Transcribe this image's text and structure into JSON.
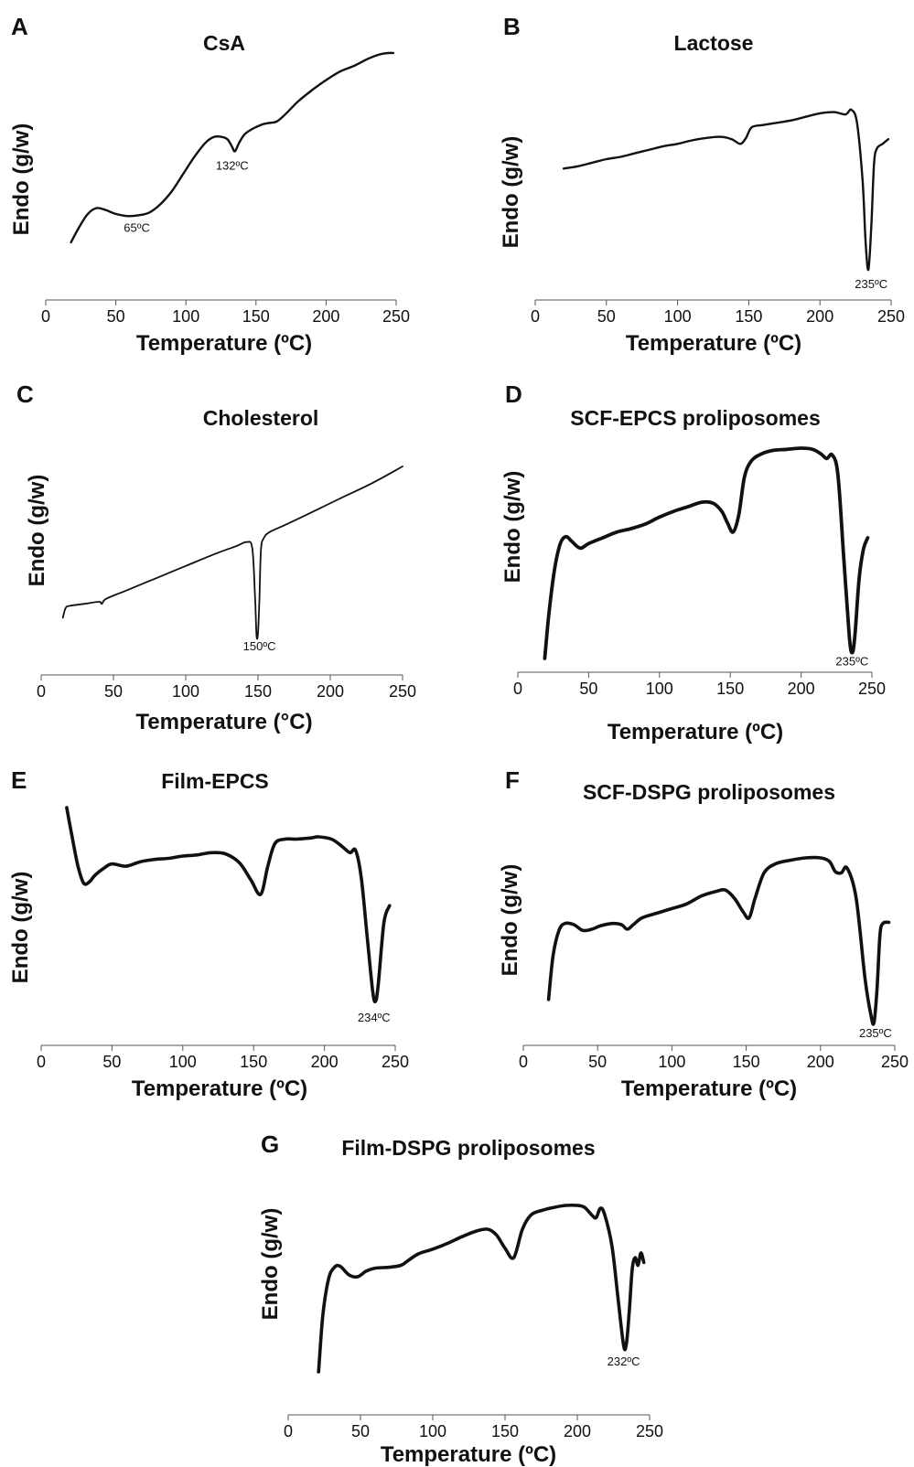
{
  "chart_data": [
    {
      "letter": "A",
      "title": "CsA",
      "type": "line",
      "xlabel": "Temperature (ºC)",
      "ylabel": "Endo (g/w)",
      "xlim": [
        0,
        250
      ],
      "xticks": [
        0,
        50,
        100,
        150,
        200,
        250
      ],
      "grid": false,
      "y_axis_values": "unscaled",
      "x": [
        18,
        24,
        30,
        36,
        42,
        50,
        58,
        66,
        74,
        82,
        90,
        98,
        106,
        114,
        120,
        126,
        130,
        133,
        135,
        138,
        142,
        148,
        155,
        160,
        165,
        172,
        180,
        190,
        200,
        210,
        220,
        230,
        238,
        244,
        248
      ],
      "y": [
        34,
        45,
        54,
        58,
        57,
        54,
        52.5,
        53,
        55,
        61,
        70,
        82,
        94,
        104,
        108,
        108,
        106,
        101,
        98,
        104,
        110,
        114,
        117,
        118,
        119,
        125,
        133,
        141,
        148,
        154,
        158,
        163,
        166,
        167,
        167
      ],
      "annotations": [
        {
          "text": "65ºC",
          "x": 65,
          "y": 53
        },
        {
          "text": "132ºC",
          "x": 133,
          "y": 98
        }
      ]
    },
    {
      "letter": "B",
      "title": "Lactose",
      "type": "line",
      "xlabel": "Temperature (ºC)",
      "ylabel": "Endo (g/w)",
      "xlim": [
        0,
        250
      ],
      "xticks": [
        0,
        50,
        100,
        150,
        200,
        250
      ],
      "grid": false,
      "y_axis_values": "unscaled",
      "x": [
        20,
        30,
        40,
        50,
        60,
        70,
        80,
        90,
        100,
        110,
        120,
        130,
        138,
        144,
        148,
        152,
        160,
        170,
        180,
        190,
        200,
        210,
        218,
        222,
        226,
        230,
        232,
        234,
        236,
        238,
        240,
        244,
        248
      ],
      "y": [
        111,
        113,
        116,
        119,
        121,
        124,
        127,
        130,
        132,
        135,
        137,
        138,
        136,
        132,
        137,
        146,
        148,
        150,
        152,
        155,
        158,
        159,
        157,
        161,
        150,
        100,
        50,
        25,
        60,
        115,
        128,
        132,
        136
      ],
      "annotations": [
        {
          "text": "235ºC",
          "x": 236,
          "y": 25
        }
      ]
    },
    {
      "letter": "C",
      "title": "Cholesterol",
      "type": "line",
      "xlabel": "Temperature (°C)",
      "ylabel": "Endo (g/w)",
      "xlim": [
        0,
        250
      ],
      "xticks": [
        0,
        50,
        100,
        150,
        200,
        250
      ],
      "grid": false,
      "y_axis_values": "unscaled",
      "x": [
        15,
        17,
        20,
        30,
        40,
        42,
        45,
        60,
        80,
        100,
        120,
        135,
        142,
        146,
        148,
        149,
        150,
        151,
        152,
        154,
        158,
        170,
        190,
        210,
        230,
        250
      ],
      "y": [
        60,
        70,
        72,
        74,
        76,
        74,
        79,
        88,
        100,
        112,
        124,
        132,
        136,
        130,
        80,
        42,
        45,
        80,
        128,
        140,
        146,
        154,
        168,
        182,
        196,
        212
      ],
      "annotations": [
        {
          "text": "150ºC",
          "x": 151,
          "y": 42
        }
      ]
    },
    {
      "letter": "D",
      "title": "SCF-EPCS proliposomes",
      "type": "line",
      "xlabel": "Temperature (ºC)",
      "ylabel": "Endo (g/w)",
      "xlim": [
        0,
        250
      ],
      "xticks": [
        0,
        50,
        100,
        150,
        200,
        250
      ],
      "grid": false,
      "y_axis_values": "unscaled",
      "x": [
        19,
        22,
        26,
        30,
        34,
        38,
        44,
        50,
        60,
        70,
        80,
        90,
        100,
        110,
        120,
        130,
        138,
        144,
        148,
        152,
        156,
        160,
        165,
        172,
        180,
        190,
        200,
        208,
        214,
        218,
        222,
        226,
        230,
        234,
        236,
        238,
        241,
        244,
        247
      ],
      "y": [
        40,
        80,
        118,
        140,
        146,
        142,
        136,
        140,
        145,
        150,
        153,
        157,
        163,
        168,
        172,
        176,
        175,
        168,
        158,
        150,
        165,
        198,
        212,
        218,
        221,
        222,
        223,
        222,
        218,
        214,
        217,
        200,
        130,
        60,
        45,
        60,
        110,
        135,
        145
      ],
      "annotations": [
        {
          "text": "235ºC",
          "x": 236,
          "y": 45
        }
      ]
    },
    {
      "letter": "E",
      "title": "Film-EPCS",
      "type": "line",
      "xlabel": "Temperature (ºC)",
      "ylabel": "Endo (g/w)",
      "xlim": [
        0,
        250
      ],
      "xticks": [
        0,
        50,
        100,
        150,
        200,
        250
      ],
      "grid": false,
      "y_axis_values": "unscaled",
      "x": [
        18,
        22,
        26,
        30,
        34,
        38,
        44,
        50,
        60,
        70,
        80,
        90,
        100,
        110,
        120,
        130,
        140,
        148,
        155,
        160,
        165,
        172,
        180,
        190,
        196,
        205,
        212,
        218,
        222,
        226,
        230,
        234,
        236,
        238,
        242,
        246
      ],
      "y": [
        232,
        205,
        180,
        165,
        166,
        172,
        178,
        182,
        180,
        184,
        186,
        187,
        189,
        190,
        192,
        191,
        183,
        168,
        155,
        180,
        200,
        204,
        204,
        205,
        206,
        204,
        198,
        192,
        194,
        170,
        120,
        70,
        60,
        75,
        130,
        145
      ],
      "annotations": [
        {
          "text": "234ºC",
          "x": 235,
          "y": 60
        }
      ]
    },
    {
      "letter": "F",
      "title": "SCF-DSPG proliposomes",
      "type": "line",
      "xlabel": "Temperature (ºC)",
      "ylabel": "Endo (g/w)",
      "xlim": [
        0,
        250
      ],
      "xticks": [
        0,
        50,
        100,
        150,
        200,
        250
      ],
      "grid": false,
      "y_axis_values": "unscaled",
      "x": [
        17,
        20,
        24,
        28,
        34,
        40,
        46,
        52,
        60,
        66,
        70,
        74,
        80,
        90,
        100,
        110,
        120,
        130,
        136,
        142,
        148,
        152,
        156,
        162,
        170,
        180,
        190,
        200,
        206,
        210,
        214,
        218,
        224,
        230,
        234,
        236,
        238,
        240,
        242,
        246
      ],
      "y": [
        72,
        110,
        132,
        138,
        137,
        132,
        133,
        136,
        138,
        137,
        133,
        137,
        143,
        147,
        151,
        155,
        162,
        166,
        167,
        160,
        148,
        143,
        160,
        182,
        190,
        193,
        195,
        195,
        192,
        183,
        182,
        186,
        160,
        90,
        58,
        52,
        80,
        128,
        138,
        139
      ],
      "annotations": [
        {
          "text": "235ºC",
          "x": 237,
          "y": 52
        }
      ]
    },
    {
      "letter": "G",
      "title": "Film-DSPG proliposomes",
      "type": "line",
      "xlabel": "Temperature (ºC)",
      "ylabel": "Endo (g/w)",
      "xlim": [
        0,
        250
      ],
      "xticks": [
        0,
        50,
        100,
        150,
        200,
        250
      ],
      "grid": false,
      "y_axis_values": "unscaled",
      "x": [
        21,
        24,
        28,
        32,
        36,
        42,
        48,
        54,
        60,
        70,
        78,
        82,
        90,
        100,
        110,
        120,
        130,
        138,
        144,
        150,
        156,
        162,
        168,
        176,
        184,
        192,
        200,
        205,
        210,
        213,
        216,
        219,
        224,
        228,
        232,
        234,
        236,
        238,
        240,
        242,
        244,
        246
      ],
      "y": [
        30,
        90,
        128,
        140,
        141,
        132,
        130,
        136,
        139,
        140,
        142,
        146,
        154,
        159,
        165,
        172,
        178,
        180,
        174,
        160,
        150,
        180,
        195,
        200,
        203,
        205,
        205,
        203,
        195,
        192,
        202,
        195,
        162,
        110,
        58,
        60,
        95,
        138,
        150,
        142,
        155,
        145
      ],
      "annotations": [
        {
          "text": "232ºC",
          "x": 232,
          "y": 58
        }
      ]
    }
  ]
}
